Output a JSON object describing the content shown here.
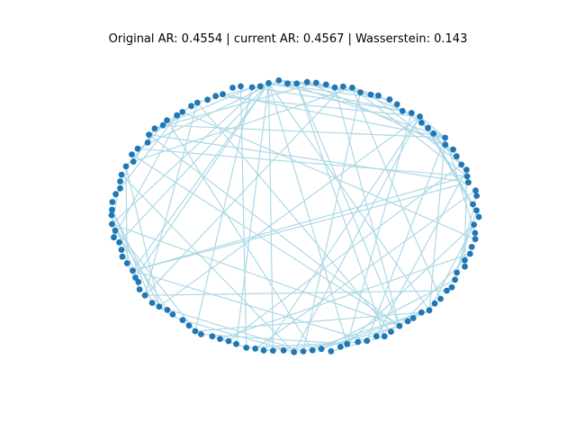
{
  "figure": {
    "title": "Original AR: 0.4554 | current AR: 0.4567 | Wasserstein: 0.143"
  },
  "graph": {
    "node_color": "#1f77b4",
    "edge_color": "#add8e6",
    "node_count": 120
  }
}
